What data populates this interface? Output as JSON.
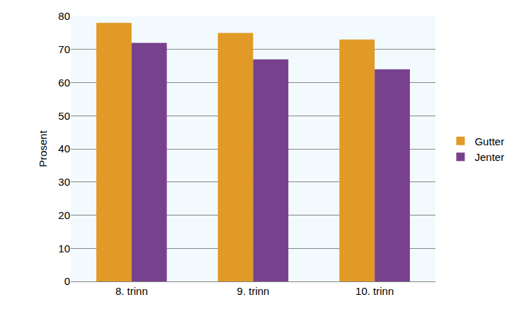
{
  "chart_data": {
    "type": "bar",
    "y_label": "Prosent",
    "categories": [
      "8. trinn",
      "9. trinn",
      "10. trinn"
    ],
    "series": [
      {
        "name": "Gutter",
        "color": "#e09a25",
        "values": [
          78,
          75,
          73
        ]
      },
      {
        "name": "Jenter",
        "color": "#77418e",
        "values": [
          72,
          67,
          64
        ]
      }
    ],
    "ylim": [
      0,
      80
    ],
    "yticks": [
      0,
      10,
      20,
      30,
      40,
      50,
      60,
      70,
      80
    ],
    "grid": true,
    "legend": "right"
  }
}
